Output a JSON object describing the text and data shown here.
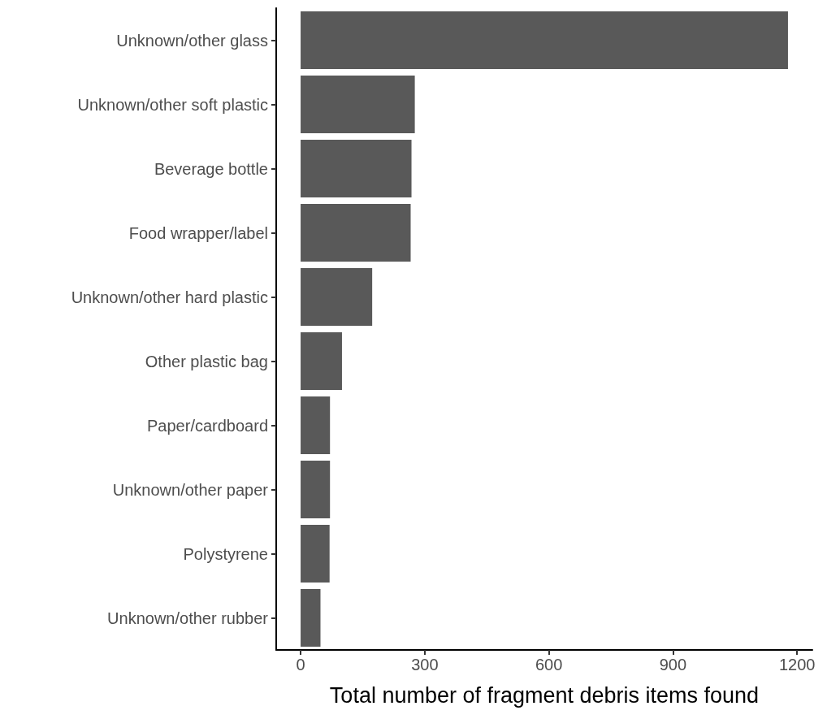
{
  "chart_data": {
    "type": "bar",
    "orientation": "horizontal",
    "xlabel": "Total number of fragment debris items found",
    "categories": [
      "Unknown/other glass",
      "Unknown/other soft plastic",
      "Beverage bottle",
      "Food wrapper/label",
      "Unknown/other hard plastic",
      "Other plastic bag",
      "Paper/cardboard",
      "Unknown/other paper",
      "Polystyrene",
      "Unknown/other rubber"
    ],
    "values": [
      1178,
      276,
      268,
      266,
      173,
      100,
      71,
      71,
      70,
      48
    ],
    "color": "#595959",
    "xlim": [
      -59,
      1237
    ],
    "xticks": [
      0,
      300,
      600,
      900,
      1200
    ],
    "grid": false
  }
}
